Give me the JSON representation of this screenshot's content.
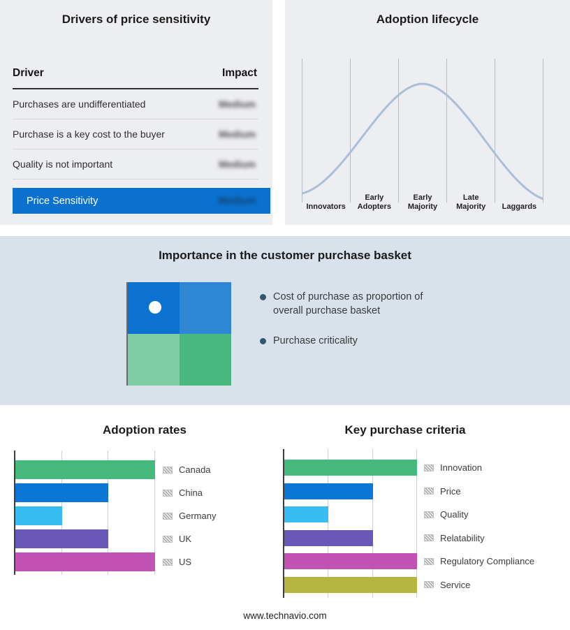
{
  "drivers_panel": {
    "title": "Drivers of price sensitivity",
    "columns": {
      "driver": "Driver",
      "impact": "Impact"
    },
    "rows": [
      {
        "driver": "Purchases are undifferentiated",
        "impact": "Medium",
        "redacted": true
      },
      {
        "driver": "Purchase is a key cost to the buyer",
        "impact": "Medium",
        "redacted": true
      },
      {
        "driver": "Quality is not important",
        "impact": "Medium",
        "redacted": true
      }
    ],
    "summary_row": {
      "label": "Price Sensitivity",
      "impact": "Medium",
      "redacted": true
    },
    "highlight_color": "#0a72ce"
  },
  "basket_panel": {
    "title": "Importance in the customer purchase basket",
    "bullets": [
      "Cost of purchase as proportion of overall purchase basket",
      "Purchase criticality"
    ],
    "quadrant_colors": {
      "top_left": "#0b72cf",
      "top_right": "#2e86d5",
      "bottom_left": "#7fcda3",
      "bottom_right": "#4ab781"
    },
    "marker": "white-dot-top-left"
  },
  "chart_data": [
    {
      "type": "line",
      "subtype": "bell-curve",
      "title": "Adoption lifecycle",
      "categories": [
        "Innovators",
        "Early Adopters",
        "Early Majority",
        "Late Majority",
        "Laggards"
      ],
      "x": [
        0,
        1,
        2,
        3,
        4
      ],
      "y_relative": [
        0.05,
        0.55,
        1.0,
        0.55,
        0.03
      ],
      "line_color": "#a9bed9",
      "grid": "vertical",
      "axis_tick_labels_shown": false
    },
    {
      "type": "bar",
      "orientation": "horizontal",
      "title": "Adoption rates",
      "categories": [
        "Canada",
        "China",
        "Germany",
        "UK",
        "US"
      ],
      "values": [
        3,
        2,
        1,
        2,
        3
      ],
      "xlim": [
        0,
        3
      ],
      "value_scale": "relative (no axis tick labels shown)",
      "bar_colors": [
        "#45b97c",
        "#0b76d4",
        "#38bdf2",
        "#6a58b8",
        "#c253b4"
      ],
      "grid": "vertical",
      "legend_position": "right",
      "legend_swatch_style": "gray-hatch"
    },
    {
      "type": "bar",
      "orientation": "horizontal",
      "title": "Key purchase criteria",
      "categories": [
        "Innovation",
        "Price",
        "Quality",
        "Relatability",
        "Regulatory Compliance",
        "Service"
      ],
      "values": [
        3,
        2,
        1,
        2,
        3,
        3
      ],
      "xlim": [
        0,
        3
      ],
      "value_scale": "relative (no axis tick labels shown)",
      "bar_colors": [
        "#45b97c",
        "#0b76d4",
        "#38bdf2",
        "#6a58b8",
        "#c253b4",
        "#b7b542"
      ],
      "grid": "vertical",
      "legend_position": "right",
      "legend_swatch_style": "gray-hatch"
    }
  ],
  "footer": {
    "website": "www.technavio.com"
  }
}
